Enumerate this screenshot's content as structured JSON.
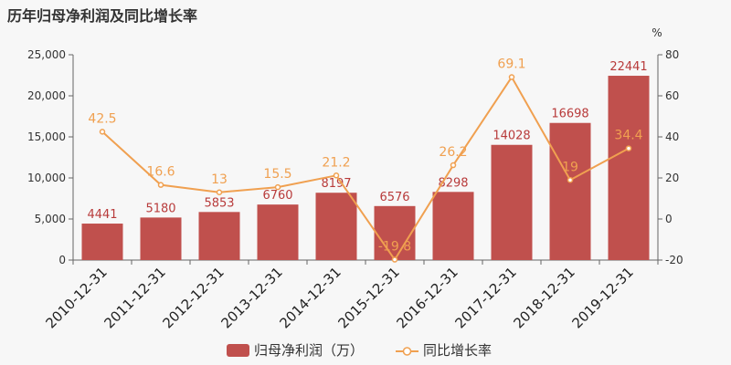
{
  "chart_data": {
    "type": "bar",
    "title": "历年归母净利润及同比增长率",
    "categories": [
      "2010-12-31",
      "2011-12-31",
      "2012-12-31",
      "2013-12-31",
      "2014-12-31",
      "2015-12-31",
      "2016-12-31",
      "2017-12-31",
      "2018-12-31",
      "2019-12-31"
    ],
    "series": [
      {
        "name": "归母净利润（万）",
        "type": "bar",
        "axis": "left",
        "color": "#c0504d",
        "values": [
          4441,
          5180,
          5853,
          6760,
          8197,
          6576,
          8298,
          14028,
          16698,
          22441
        ]
      },
      {
        "name": "同比增长率",
        "type": "line",
        "axis": "right",
        "color": "#f0a050",
        "values": [
          42.5,
          16.6,
          13,
          15.5,
          21.2,
          -19.8,
          26.2,
          69.1,
          19,
          34.4
        ]
      }
    ],
    "y_left": {
      "min": 0,
      "max": 25000,
      "ticks": [
        0,
        5000,
        10000,
        15000,
        20000,
        25000
      ]
    },
    "y_right": {
      "label": "%",
      "min": -20,
      "max": 80,
      "ticks": [
        -20,
        0,
        20,
        40,
        60,
        80
      ]
    },
    "grid": false,
    "legend_position": "bottom"
  }
}
